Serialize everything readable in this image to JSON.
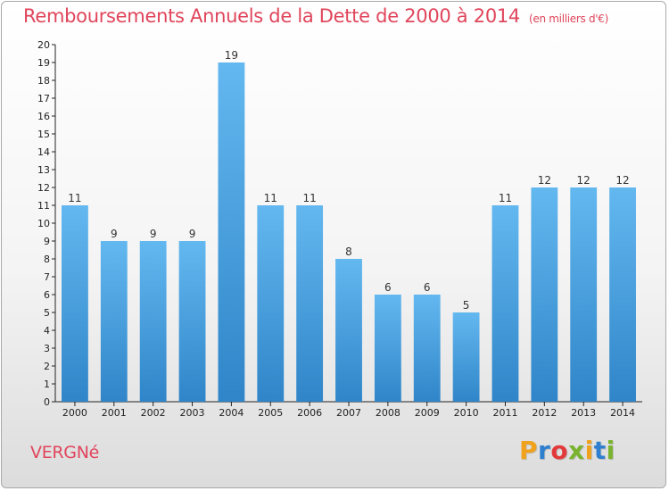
{
  "header": {
    "title": "Remboursements Annuels de la Dette de 2000 à 2014",
    "unit": "(en milliers d'€)"
  },
  "footer": {
    "commune": "VERGNé",
    "logo": [
      "P",
      "r",
      "o",
      "x",
      "i",
      "t",
      "i"
    ],
    "logo_colors": [
      "#f0a21d",
      "#2e7fd0",
      "#e23a3a",
      "#7ab32e",
      "#f0a21d",
      "#2e7fd0",
      "#7ab32e"
    ]
  },
  "colors": {
    "bar_light": "#64b8f0",
    "bar_dark": "#2f85c8",
    "axis": "#222222",
    "text_accent": "#e0455b"
  },
  "chart_data": {
    "type": "bar",
    "title": "Remboursements Annuels de la Dette de 2000 à 2014",
    "subtitle": "(en milliers d'€)",
    "xlabel": "",
    "ylabel": "",
    "categories": [
      "2000",
      "2001",
      "2002",
      "2003",
      "2004",
      "2005",
      "2006",
      "2007",
      "2008",
      "2009",
      "2010",
      "2011",
      "2012",
      "2013",
      "2014"
    ],
    "values": [
      11,
      9,
      9,
      9,
      19,
      11,
      11,
      8,
      6,
      6,
      5,
      11,
      12,
      12,
      12
    ],
    "ylim": [
      0,
      20
    ],
    "yticks": [
      "0",
      "1",
      "2",
      "3",
      "4",
      "5",
      "6",
      "7",
      "8",
      "9",
      "10",
      "11",
      "12",
      "13",
      "14",
      "15",
      "16",
      "17",
      "18",
      "19",
      "20"
    ],
    "data_labels": true,
    "grid": false,
    "legend": "none"
  }
}
